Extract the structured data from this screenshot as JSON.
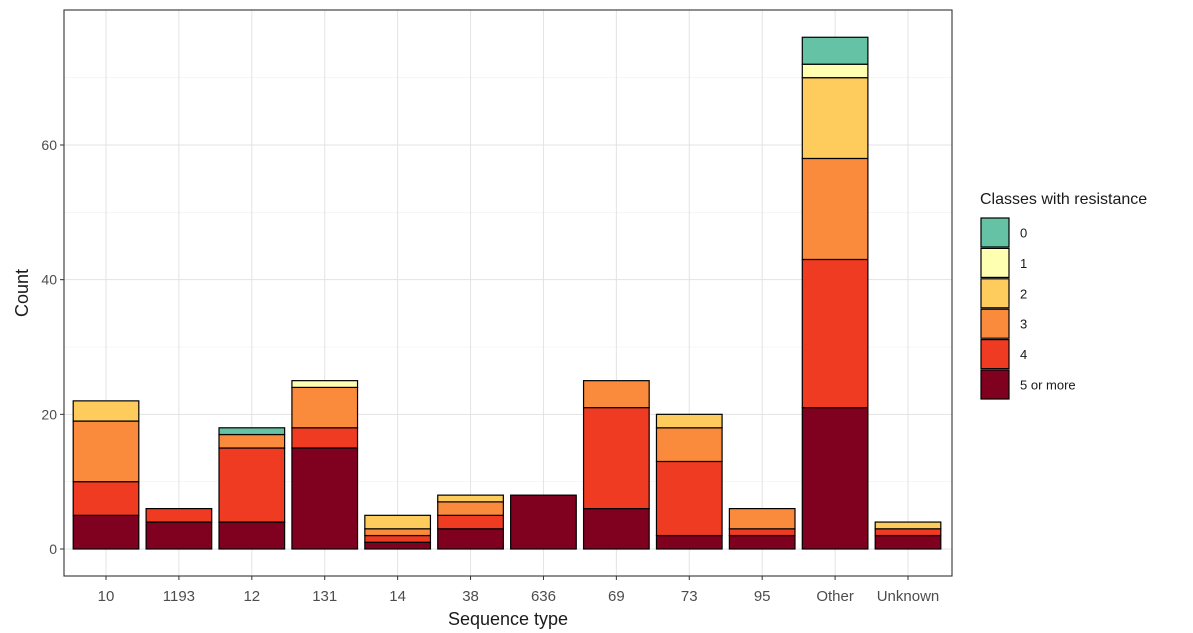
{
  "chart_data": {
    "type": "bar",
    "stacked": true,
    "xlabel": "Sequence type",
    "ylabel": "Count",
    "ylim": [
      0,
      80
    ],
    "yticks": [
      0,
      20,
      40,
      60
    ],
    "grid": true,
    "legend_position": "right",
    "legend_title": "Classes with resistance",
    "categories": [
      "10",
      "1193",
      "12",
      "131",
      "14",
      "38",
      "636",
      "69",
      "73",
      "95",
      "Other",
      "Unknown"
    ],
    "series": [
      {
        "name": "5 or more",
        "color": "#800020",
        "values": [
          5,
          4,
          4,
          15,
          1,
          3,
          8,
          6,
          2,
          2,
          21,
          2
        ]
      },
      {
        "name": "4",
        "color": "#EF3B22",
        "values": [
          5,
          2,
          11,
          3,
          1,
          2,
          0,
          15,
          11,
          1,
          22,
          1
        ]
      },
      {
        "name": "3",
        "color": "#FB8B3C",
        "values": [
          9,
          0,
          2,
          6,
          1,
          2,
          0,
          4,
          5,
          3,
          15,
          0
        ]
      },
      {
        "name": "2",
        "color": "#FECC5C",
        "values": [
          3,
          0,
          0,
          0,
          2,
          1,
          0,
          0,
          2,
          0,
          12,
          1
        ]
      },
      {
        "name": "1",
        "color": "#FFFFB2",
        "values": [
          0,
          0,
          0,
          1,
          0,
          0,
          0,
          0,
          0,
          0,
          2,
          0
        ]
      },
      {
        "name": "0",
        "color": "#66C2A4",
        "values": [
          0,
          0,
          1,
          0,
          0,
          0,
          0,
          0,
          0,
          0,
          4,
          0
        ]
      }
    ],
    "legend_order": [
      "0",
      "1",
      "2",
      "3",
      "4",
      "5 or more"
    ]
  }
}
